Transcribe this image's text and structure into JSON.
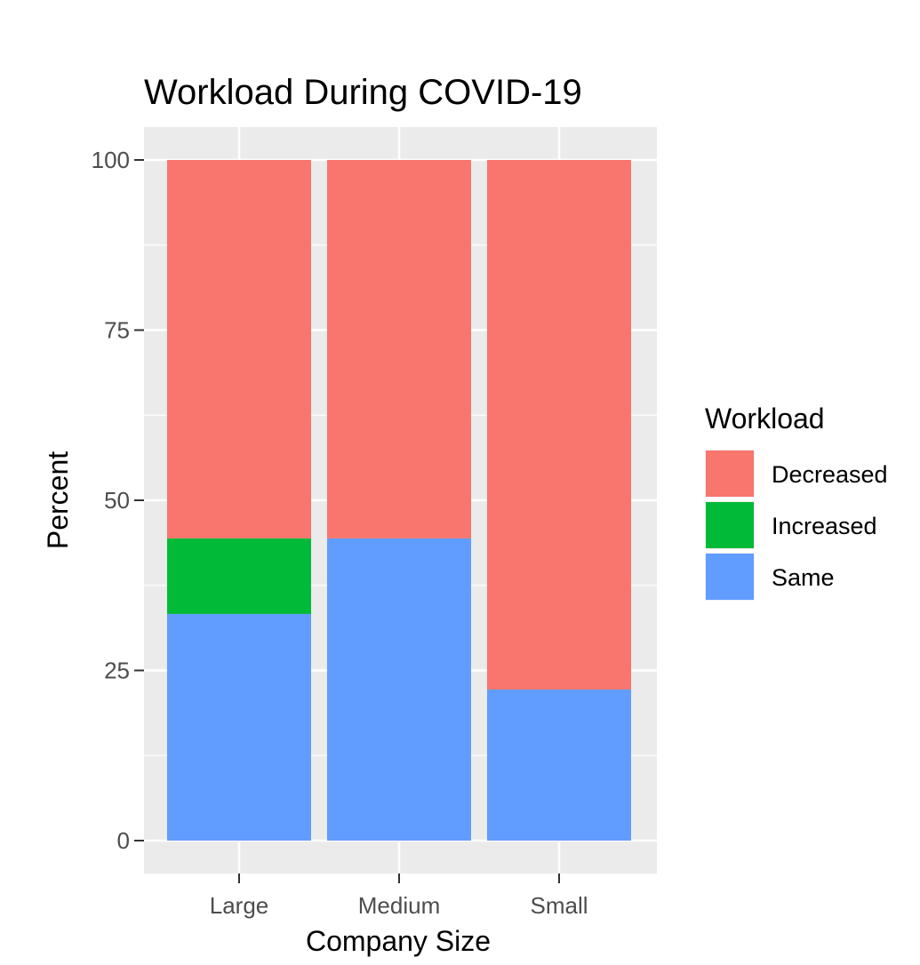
{
  "chart_data": {
    "type": "bar",
    "stacked": true,
    "title": "Workload During COVID-19",
    "xlabel": "Company Size",
    "ylabel": "Percent",
    "categories": [
      "Large",
      "Medium",
      "Small"
    ],
    "series": [
      {
        "name": "Same",
        "color": "#619CFF",
        "values": [
          33.3,
          44.4,
          22.2
        ]
      },
      {
        "name": "Increased",
        "color": "#00BA38",
        "values": [
          11.1,
          0,
          0
        ]
      },
      {
        "name": "Decreased",
        "color": "#F8766D",
        "values": [
          55.6,
          55.6,
          77.8
        ]
      }
    ],
    "legend_order": [
      "Decreased",
      "Increased",
      "Same"
    ],
    "ylim": [
      0,
      100
    ],
    "yticks": [
      0,
      25,
      50,
      75,
      100
    ],
    "grid": true,
    "legend": {
      "title": "Workload",
      "placement": "right"
    },
    "panel_background": "#EBEBEB"
  }
}
